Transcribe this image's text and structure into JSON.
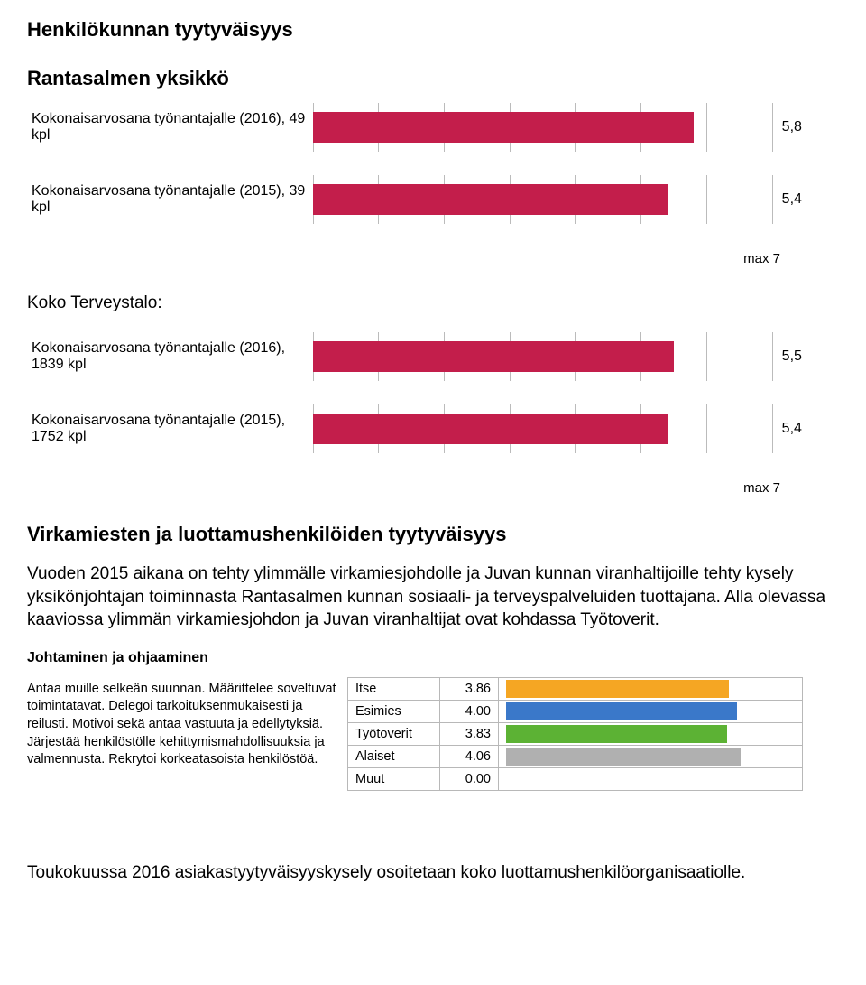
{
  "headings": {
    "title1": "Henkilökunnan tyytyväisyys",
    "subtitle1": "Rantasalmen yksikkö",
    "midLabel": "Koko Terveystalo:",
    "title2": "Virkamiesten ja luottamushenkilöiden tyytyväisyys"
  },
  "chart1": {
    "max": 7,
    "max_label": "max  7",
    "bar_color": "#c31e4b",
    "grid_color": "#bbbbbb",
    "rows": [
      {
        "label": "Kokonaisarvosana työnantajalle (2016), 49 kpl",
        "value": 5.8,
        "value_str": "5,8"
      },
      {
        "label": "Kokonaisarvosana työnantajalle (2015), 39 kpl",
        "value": 5.4,
        "value_str": "5,4"
      }
    ]
  },
  "chart2": {
    "max": 7,
    "max_label": "max  7",
    "bar_color": "#c31e4b",
    "grid_color": "#bbbbbb",
    "rows": [
      {
        "label": "Kokonaisarvosana työnantajalle (2016), 1839 kpl",
        "value": 5.5,
        "value_str": "5,5"
      },
      {
        "label": "Kokonaisarvosana työnantajalle (2015), 1752 kpl",
        "value": 5.4,
        "value_str": "5,4"
      }
    ]
  },
  "paragraph": "Vuoden 2015 aikana on tehty ylimmälle virkamiesjohdolle ja Juvan kunnan viranhaltijoille tehty kysely yksikönjohtajan toiminnasta Rantasalmen kunnan sosiaali- ja terveyspalveluiden tuottajana. Alla olevassa kaaviossa ylimmän virkamiesjohdon ja Juvan viranhaltijat ovat kohdassa Työtoverit.",
  "table": {
    "section_title": "Johtaminen ja ohjaaminen",
    "description": "Antaa muille selkeän suunnan. Määrittelee soveltuvat toimintatavat. Delegoi tarkoituksenmukaisesti ja reilusti. Motivoi sekä antaa vastuuta ja edellytyksiä. Järjestää henkilöstölle kehittymismahdollisuuksia ja valmennusta. Rekrytoi korkeatasoista henkilöstöä.",
    "chart_max": 5,
    "rows": [
      {
        "name": "Itse",
        "value": 3.86,
        "value_str": "3.86",
        "color": "#f5a623"
      },
      {
        "name": "Esimies",
        "value": 4.0,
        "value_str": "4.00",
        "color": "#3a78c9"
      },
      {
        "name": "Työtoverit",
        "value": 3.83,
        "value_str": "3.83",
        "color": "#5cb234"
      },
      {
        "name": "Alaiset",
        "value": 4.06,
        "value_str": "4.06",
        "color": "#b0b0b0"
      },
      {
        "name": "Muut",
        "value": 0.0,
        "value_str": "0.00",
        "color": "#888888"
      }
    ]
  },
  "footer": "Toukokuussa 2016 asiakastyytyväisyyskysely osoitetaan koko luottamushenkilöorganisaatiolle."
}
